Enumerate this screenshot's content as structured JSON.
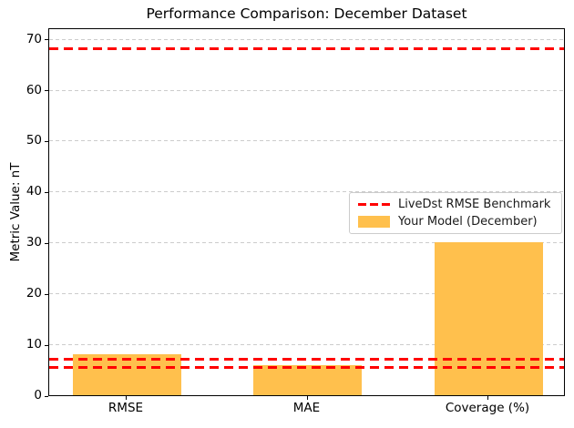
{
  "figure": {
    "title": "Performance Comparison: December Dataset"
  },
  "chart_data": {
    "type": "bar",
    "title": "Performance Comparison: December Dataset",
    "ylabel": "Metric Value: nT",
    "xlabel": "",
    "categories": [
      "RMSE",
      "MAE",
      "Coverage (%)"
    ],
    "series": [
      {
        "name": "Your Model (December)",
        "values": [
          8.0,
          5.9,
          30.0
        ],
        "color": "#ffc04d"
      }
    ],
    "benchmark_lines": {
      "name": "LiveDst RMSE Benchmark",
      "values": [
        68.0,
        7.1,
        5.5
      ],
      "color": "#ff0000",
      "style": "dashed"
    },
    "ylim": [
      0,
      71.9
    ],
    "yticks": [
      0,
      10,
      20,
      30,
      40,
      50,
      60,
      70
    ],
    "grid": {
      "axis": "y",
      "style": "dashed",
      "color": "#cccccc"
    },
    "legend": {
      "position": "center-right",
      "entries": [
        "LiveDst RMSE Benchmark",
        "Your Model (December)"
      ]
    }
  }
}
